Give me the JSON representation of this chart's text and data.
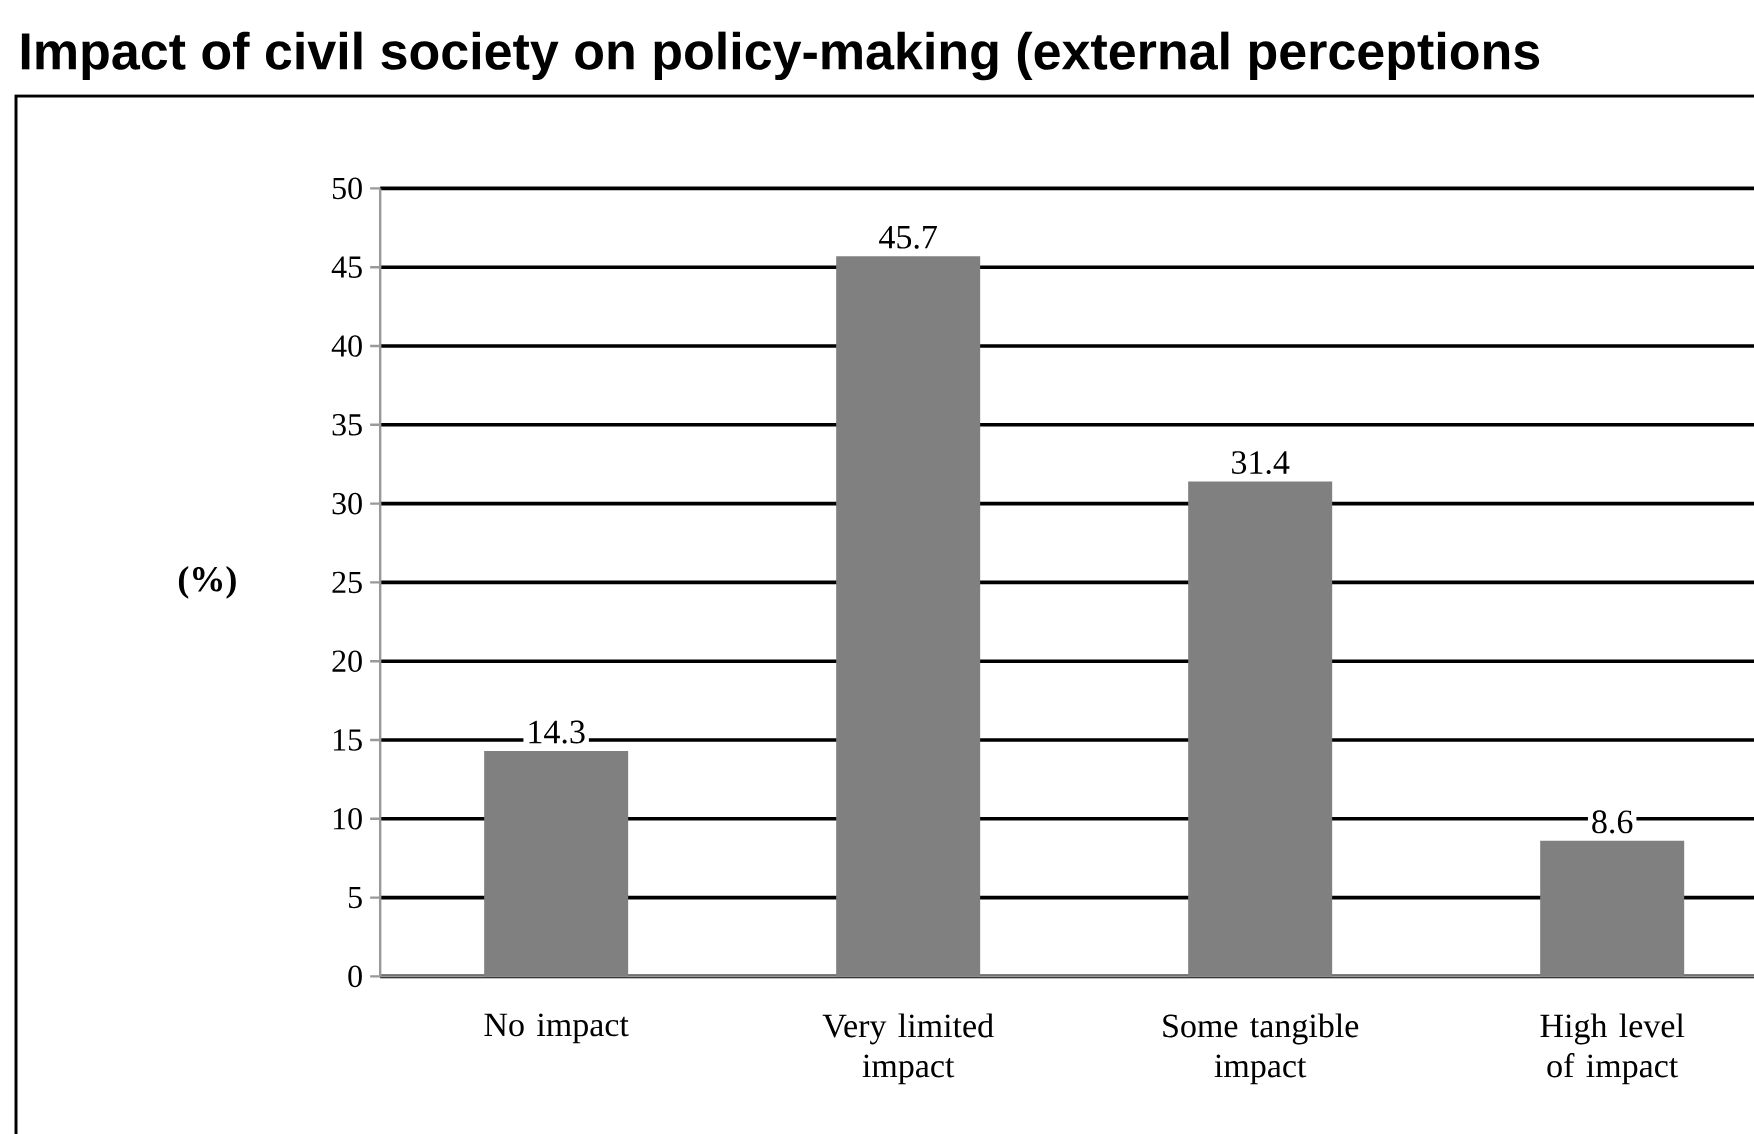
{
  "chart_data": {
    "type": "bar",
    "title": "Impact of civil society on policy-making (external perceptions",
    "ylabel": "(%)",
    "categories": [
      "No impact",
      "Very limited impact",
      "Some tangible impact",
      "High level of impact"
    ],
    "values": [
      14.3,
      45.7,
      31.4,
      8.6
    ],
    "color": "#808080",
    "ylim": [
      0,
      50
    ],
    "yticks": [
      0,
      5,
      10,
      15,
      20,
      25,
      30,
      35,
      40,
      45,
      50
    ],
    "grid": "y",
    "data_labels": true
  }
}
